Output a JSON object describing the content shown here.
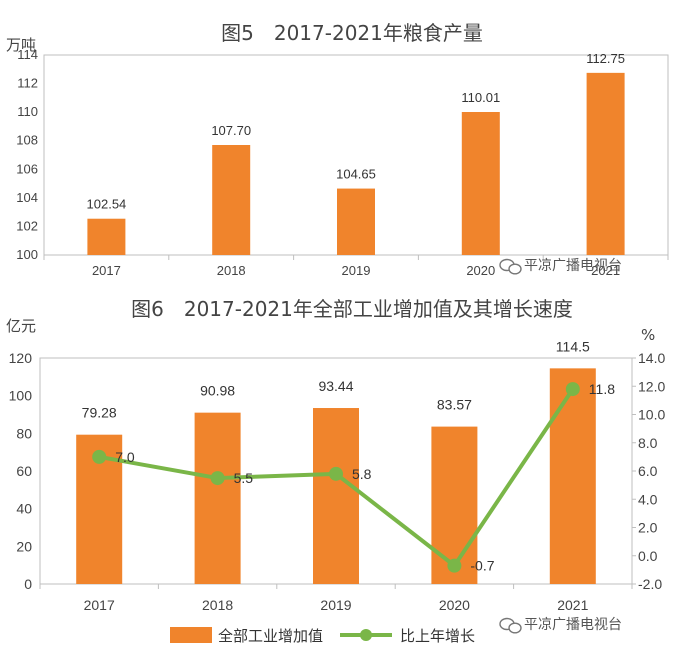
{
  "watermark": "平凉广播电视台",
  "chart_data": [
    {
      "type": "bar",
      "title": "图5　2017-2021年粮食产量",
      "ylabel": "万吨",
      "categories": [
        "2017",
        "2018",
        "2019",
        "2020",
        "2021"
      ],
      "values": [
        102.54,
        107.7,
        104.65,
        110.01,
        112.75
      ],
      "value_labels": [
        "102.54",
        "107.70",
        "104.65",
        "110.01",
        "112.75"
      ],
      "ylim": [
        100,
        114
      ],
      "yticks": [
        "100",
        "102",
        "104",
        "106",
        "108",
        "110",
        "112",
        "114"
      ],
      "bar_color": "#F0842C",
      "grid": false
    },
    {
      "type": "bar+line",
      "title": "图6　2017-2021年全部工业增加值及其增长速度",
      "categories": [
        "2017",
        "2018",
        "2019",
        "2020",
        "2021"
      ],
      "left_axis": {
        "label": "亿元",
        "ylim": [
          0,
          120
        ],
        "ticks": [
          "0",
          "20",
          "40",
          "60",
          "80",
          "100",
          "120"
        ]
      },
      "right_axis": {
        "label": "%",
        "ylim": [
          -2,
          14
        ],
        "ticks": [
          "-2.0",
          "0.0",
          "2.0",
          "4.0",
          "6.0",
          "8.0",
          "10.0",
          "12.0",
          "14.0"
        ]
      },
      "series": [
        {
          "name": "全部工业增加值",
          "type": "bar",
          "axis": "left",
          "values": [
            79.28,
            90.98,
            93.44,
            83.57,
            114.5
          ],
          "labels": [
            "79.28",
            "90.98",
            "93.44",
            "83.57",
            "114.5"
          ],
          "color": "#F0842C"
        },
        {
          "name": "比上年增长",
          "type": "line",
          "axis": "right",
          "values": [
            7.0,
            5.5,
            5.8,
            -0.7,
            11.8
          ],
          "labels": [
            "7.0",
            "5.5",
            "5.8",
            "-0.7",
            "11.8"
          ],
          "color": "#7AB648"
        }
      ],
      "legend_position": "bottom",
      "grid": false
    }
  ]
}
